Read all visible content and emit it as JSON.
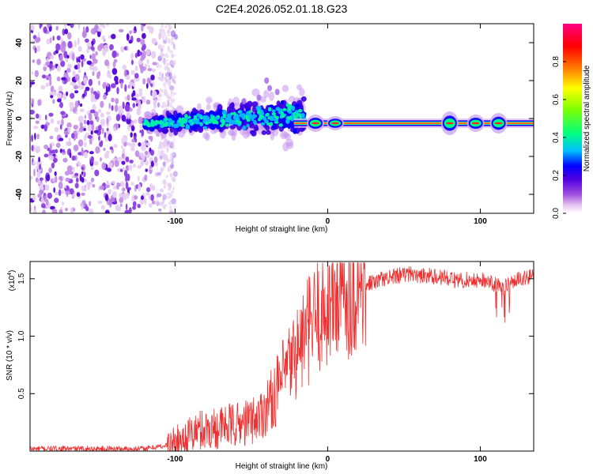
{
  "title": "C2E4.2026.052.01.18.G23",
  "chart_data": [
    {
      "type": "heatmap",
      "name": "spectrogram",
      "xlabel": "Height of straight line (km)",
      "ylabel": "Frequency (Hz)",
      "xlim": [
        -195,
        135
      ],
      "ylim": [
        -50,
        50
      ],
      "xticks": [
        -100,
        0,
        100
      ],
      "yticks": [
        -40,
        -20,
        0,
        20,
        40
      ],
      "colorbar": {
        "label": "Normalized spectral amplitude",
        "range": [
          0.0,
          1.0
        ],
        "ticks": [
          0.0,
          0.2,
          0.4,
          0.6,
          0.8
        ],
        "colors": [
          "#ffffff",
          "#e8c8f0",
          "#a050e0",
          "#5000e0",
          "#0000ff",
          "#00c0ff",
          "#00ff80",
          "#80ff00",
          "#ffff00",
          "#ff8000",
          "#ff0000",
          "#ff0080"
        ]
      },
      "regions": [
        {
          "name": "noise",
          "x": [
            -195,
            -105
          ],
          "freq": [
            -50,
            50
          ],
          "amplitude": 0.05
        },
        {
          "name": "turbulent scatter",
          "x": [
            -120,
            -15
          ],
          "freq": [
            -15,
            20
          ],
          "amplitude": 0.45
        },
        {
          "name": "stable carrier",
          "x": [
            -15,
            135
          ],
          "freq": [
            -2,
            2
          ],
          "amplitude": 0.95
        }
      ]
    },
    {
      "type": "line",
      "name": "snr",
      "xlabel": "Height of straight line (km)",
      "ylabel": "SNR (10 * v/v)",
      "yscale_label_base": "(x10",
      "yscale_label_exp": "4",
      "xlim": [
        -195,
        135
      ],
      "ylim": [
        0,
        1.65
      ],
      "xticks": [
        -100,
        0,
        100
      ],
      "yticks": [
        0.5,
        1.0,
        1.5
      ],
      "ytick_labels": [
        "0.5",
        "1.0",
        "1.5"
      ],
      "series": [
        {
          "name": "SNR",
          "color": "#f03030",
          "x": [
            -195,
            -120,
            -105,
            -95,
            -85,
            -75,
            -65,
            -55,
            -45,
            -35,
            -25,
            -15,
            -5,
            5,
            15,
            25,
            35,
            45,
            55,
            65,
            75,
            85,
            95,
            105,
            115,
            125,
            135
          ],
          "y": [
            0.02,
            0.02,
            0.05,
            0.1,
            0.18,
            0.2,
            0.22,
            0.24,
            0.3,
            0.48,
            0.75,
            1.0,
            1.2,
            1.32,
            1.42,
            1.48,
            1.52,
            1.55,
            1.56,
            1.55,
            1.53,
            1.5,
            1.52,
            1.5,
            1.45,
            1.52,
            1.55
          ]
        }
      ]
    }
  ]
}
